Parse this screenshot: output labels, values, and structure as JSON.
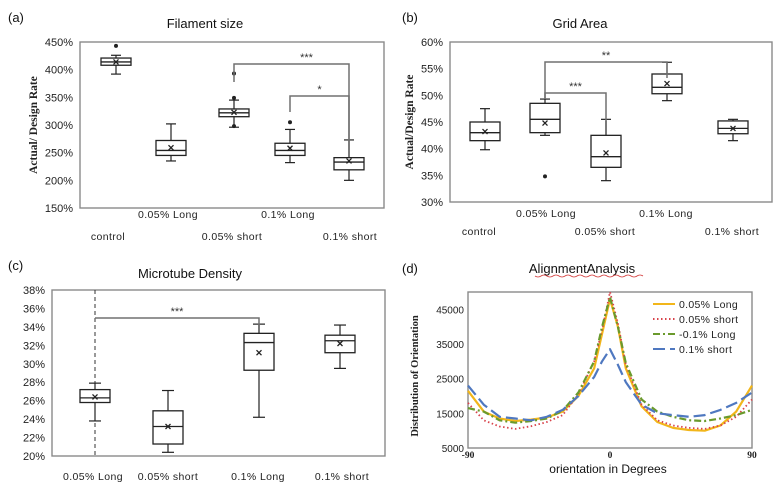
{
  "chart_data": [
    {
      "panel": "(a)",
      "type": "box",
      "title": "Filament size",
      "ylabel": "Actual/ Design Rate",
      "ylim": [
        150,
        450
      ],
      "yticks": [
        "150%",
        "200%",
        "250%",
        "300%",
        "350%",
        "400%",
        "450%"
      ],
      "ytick_values": [
        150,
        200,
        250,
        300,
        350,
        400,
        450
      ],
      "category_labels": [
        "control",
        "0.05% Long",
        "0.05% short",
        "0.1% Long",
        "0.1% short"
      ],
      "boxes": [
        {
          "min": 392,
          "q1": 408,
          "median": 414,
          "q3": 421,
          "max": 426,
          "mean": 414,
          "outliers": [
            443
          ]
        },
        {
          "min": 235,
          "q1": 245,
          "median": 254,
          "q3": 272,
          "max": 302,
          "mean": 259,
          "outliers": []
        },
        {
          "min": 296,
          "q1": 315,
          "median": 322,
          "q3": 329,
          "max": 345,
          "mean": 323,
          "outliers": [
            393,
            349,
            298
          ]
        },
        {
          "min": 232,
          "q1": 245,
          "median": 254,
          "q3": 267,
          "max": 292,
          "mean": 258,
          "outliers": [
            305
          ]
        },
        {
          "min": 200,
          "q1": 219,
          "median": 233,
          "q3": 241,
          "max": 273,
          "mean": 235,
          "outliers": []
        }
      ],
      "significance": [
        {
          "from": 2,
          "to": 4,
          "label": "***"
        },
        {
          "from": 3,
          "to": 4,
          "label": "*"
        }
      ]
    },
    {
      "panel": "(b)",
      "type": "box",
      "title": "Grid Area",
      "ylabel": "Actual/Design Rate",
      "ylim": [
        30,
        60
      ],
      "yticks": [
        "30%",
        "35%",
        "40%",
        "45%",
        "50%",
        "55%",
        "60%"
      ],
      "ytick_values": [
        30,
        35,
        40,
        45,
        50,
        55,
        60
      ],
      "category_labels": [
        "control",
        "0.05% Long",
        "0.05% short",
        "0.1% Long",
        "0.1% short"
      ],
      "boxes": [
        {
          "min": 39.8,
          "q1": 41.5,
          "median": 43.0,
          "q3": 45.0,
          "max": 47.5,
          "mean": 43.2,
          "outliers": []
        },
        {
          "min": 42.5,
          "q1": 43.0,
          "median": 45.5,
          "q3": 48.5,
          "max": 49.3,
          "mean": 44.8,
          "outliers": [
            34.8
          ]
        },
        {
          "min": 34.0,
          "q1": 36.5,
          "median": 38.5,
          "q3": 42.5,
          "max": 45.5,
          "mean": 39.2,
          "outliers": []
        },
        {
          "min": 49.0,
          "q1": 50.3,
          "median": 51.5,
          "q3": 54.0,
          "max": 56.2,
          "mean": 52.2,
          "outliers": []
        },
        {
          "min": 41.5,
          "q1": 42.8,
          "median": 43.8,
          "q3": 45.2,
          "max": 45.5,
          "mean": 43.8,
          "outliers": []
        }
      ],
      "significance": [
        {
          "from": 1,
          "to": 3,
          "label": "**"
        },
        {
          "from": 1,
          "to": 2,
          "label": "***"
        }
      ]
    },
    {
      "panel": "(c)",
      "type": "box",
      "title": "Microtube Density",
      "ylabel": "",
      "ylim": [
        20,
        38
      ],
      "yticks": [
        "20%",
        "22%",
        "24%",
        "26%",
        "28%",
        "30%",
        "32%",
        "34%",
        "36%",
        "38%"
      ],
      "ytick_values": [
        20,
        22,
        24,
        26,
        28,
        30,
        32,
        34,
        36,
        38
      ],
      "category_labels": [
        "0.05% Long",
        "0.05% short",
        "0.1% Long",
        "0.1% short"
      ],
      "boxes": [
        {
          "min": 23.8,
          "q1": 25.8,
          "median": 26.3,
          "q3": 27.2,
          "max": 27.9,
          "mean": 26.4,
          "outliers": []
        },
        {
          "min": 20.4,
          "q1": 21.3,
          "median": 23.2,
          "q3": 24.9,
          "max": 27.1,
          "mean": 23.2,
          "outliers": []
        },
        {
          "min": 24.2,
          "q1": 29.3,
          "median": 32.3,
          "q3": 33.3,
          "max": 34.3,
          "mean": 31.2,
          "outliers": []
        },
        {
          "min": 29.5,
          "q1": 31.2,
          "median": 32.5,
          "q3": 33.1,
          "max": 34.2,
          "mean": 32.2,
          "outliers": []
        }
      ],
      "significance": [
        {
          "from": 0,
          "to": 2,
          "label": "***"
        }
      ]
    },
    {
      "panel": "(d)",
      "type": "line",
      "title": "AlignmentAnalysis",
      "xlabel": "orientation in Degrees",
      "ylabel": "Distribution of Orientation",
      "xlim": [
        -90,
        90
      ],
      "ylim": [
        5000,
        50000
      ],
      "xticks": [
        "-90",
        "0",
        "90"
      ],
      "xtick_values": [
        -90,
        0,
        90
      ],
      "yticks": [
        "5000",
        "15000",
        "25000",
        "35000",
        "45000"
      ],
      "ytick_values": [
        5000,
        15000,
        25000,
        35000,
        45000
      ],
      "legend_position": "top-right",
      "x": [
        -90,
        -80,
        -70,
        -60,
        -50,
        -40,
        -30,
        -20,
        -10,
        -5,
        0,
        5,
        10,
        20,
        30,
        40,
        50,
        60,
        70,
        80,
        90
      ],
      "series": [
        {
          "name": "0.05% Long",
          "color": "#f2b61a",
          "dash": "solid",
          "values": [
            21500,
            15500,
            13500,
            12800,
            13200,
            13800,
            15500,
            20000,
            28000,
            38000,
            48000,
            40000,
            28000,
            17000,
            12500,
            10800,
            10200,
            10000,
            11500,
            15500,
            23000
          ]
        },
        {
          "name": "0.05% short",
          "color": "#d8434b",
          "dash": "dotted",
          "values": [
            18000,
            13000,
            11200,
            10500,
            11300,
            12500,
            14500,
            20500,
            30000,
            39000,
            50000,
            41000,
            29000,
            17500,
            13000,
            11500,
            10800,
            10500,
            11500,
            14000,
            19000
          ]
        },
        {
          "name": "-0.1% Long",
          "color": "#6a9a2c",
          "dash": "dashdot",
          "values": [
            16500,
            15500,
            13000,
            12300,
            12800,
            13500,
            15800,
            21000,
            30000,
            40000,
            48500,
            40000,
            29500,
            19000,
            15500,
            14000,
            13000,
            12800,
            13500,
            14500,
            16000
          ]
        },
        {
          "name": "0.1% short",
          "color": "#4f78c0",
          "dash": "longdash",
          "values": [
            23000,
            17500,
            14000,
            13500,
            13000,
            14000,
            16000,
            20000,
            25500,
            30000,
            33500,
            29000,
            24000,
            17500,
            15000,
            14500,
            14000,
            14500,
            16000,
            18000,
            21000
          ]
        }
      ]
    }
  ]
}
